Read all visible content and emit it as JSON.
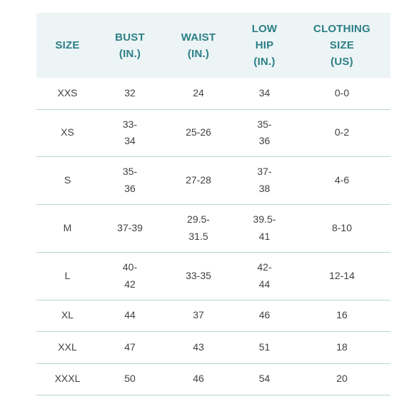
{
  "headers": [
    [
      "SIZE"
    ],
    [
      "BUST",
      "(IN.)"
    ],
    [
      "WAIST",
      "(IN.)"
    ],
    [
      "LOW",
      "HIP",
      "(IN.)"
    ],
    [
      "CLOTHING",
      "SIZE",
      "(US)"
    ]
  ],
  "rows": [
    {
      "size": [
        "XXS"
      ],
      "bust": [
        "32"
      ],
      "waist": [
        "24"
      ],
      "low_hip": [
        "34"
      ],
      "clothing_size": [
        "0-0"
      ]
    },
    {
      "size": [
        "XS"
      ],
      "bust": [
        "33-",
        "34"
      ],
      "waist": [
        "25-26"
      ],
      "low_hip": [
        "35-",
        "36"
      ],
      "clothing_size": [
        "0-2"
      ]
    },
    {
      "size": [
        "S"
      ],
      "bust": [
        "35-",
        "36"
      ],
      "waist": [
        "27-28"
      ],
      "low_hip": [
        "37-",
        "38"
      ],
      "clothing_size": [
        "4-6"
      ]
    },
    {
      "size": [
        "M"
      ],
      "bust": [
        "37-39"
      ],
      "waist": [
        "29.5-",
        "31.5"
      ],
      "low_hip": [
        "39.5-",
        "41"
      ],
      "clothing_size": [
        "8-10"
      ]
    },
    {
      "size": [
        "L"
      ],
      "bust": [
        "40-",
        "42"
      ],
      "waist": [
        "33-35"
      ],
      "low_hip": [
        "42-",
        "44"
      ],
      "clothing_size": [
        "12-14"
      ]
    },
    {
      "size": [
        "XL"
      ],
      "bust": [
        "44"
      ],
      "waist": [
        "37"
      ],
      "low_hip": [
        "46"
      ],
      "clothing_size": [
        "16"
      ]
    },
    {
      "size": [
        "XXL"
      ],
      "bust": [
        "47"
      ],
      "waist": [
        "43"
      ],
      "low_hip": [
        "51"
      ],
      "clothing_size": [
        "18"
      ]
    },
    {
      "size": [
        "XXXL"
      ],
      "bust": [
        "50"
      ],
      "waist": [
        "46"
      ],
      "low_hip": [
        "54"
      ],
      "clothing_size": [
        "20"
      ]
    }
  ],
  "colors": {
    "header_background": "#edf4f5",
    "header_text": "#2c7f86",
    "cell_text": "#414141",
    "row_divider": "#b9d3d6"
  }
}
